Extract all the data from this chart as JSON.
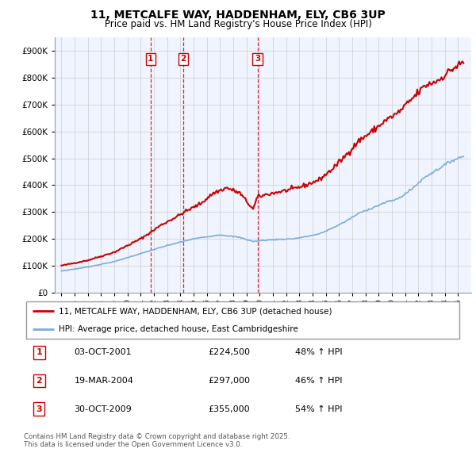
{
  "title": "11, METCALFE WAY, HADDENHAM, ELY, CB6 3UP",
  "subtitle": "Price paid vs. HM Land Registry's House Price Index (HPI)",
  "red_label": "11, METCALFE WAY, HADDENHAM, ELY, CB6 3UP (detached house)",
  "blue_label": "HPI: Average price, detached house, East Cambridgeshire",
  "footnote": "Contains HM Land Registry data © Crown copyright and database right 2025.\nThis data is licensed under the Open Government Licence v3.0.",
  "transactions": [
    {
      "num": 1,
      "date": "03-OCT-2001",
      "price": "£224,500",
      "change": "48% ↑ HPI",
      "year": 2001.75
    },
    {
      "num": 2,
      "date": "19-MAR-2004",
      "price": "£297,000",
      "change": "46% ↑ HPI",
      "year": 2004.21
    },
    {
      "num": 3,
      "date": "30-OCT-2009",
      "price": "£355,000",
      "change": "54% ↑ HPI",
      "year": 2009.83
    }
  ],
  "red_color": "#cc0000",
  "blue_color": "#7aaddc",
  "vline_color": "#cc0000",
  "background_color": "#f0f4ff",
  "ylim": [
    0,
    950000
  ],
  "xlim_start": 1994.5,
  "xlim_end": 2026.0,
  "red_anchors_x": [
    1995.0,
    1997.0,
    1999.0,
    2001.0,
    2001.75,
    2002.5,
    2004.0,
    2004.21,
    2005.5,
    2006.5,
    2007.5,
    2008.5,
    2009.0,
    2009.5,
    2009.83,
    2010.5,
    2011.5,
    2012.5,
    2013.5,
    2014.5,
    2015.5,
    2016.5,
    2017.5,
    2018.5,
    2019.5,
    2020.5,
    2021.5,
    2022.5,
    2023.5,
    2024.5,
    2025.5
  ],
  "red_anchors_y": [
    100000,
    120000,
    150000,
    200000,
    224500,
    250000,
    290000,
    297000,
    330000,
    370000,
    390000,
    370000,
    340000,
    310000,
    355000,
    365000,
    375000,
    385000,
    400000,
    420000,
    460000,
    510000,
    565000,
    600000,
    640000,
    670000,
    720000,
    770000,
    790000,
    830000,
    860000
  ],
  "blue_anchors_x": [
    1995.0,
    1997.0,
    1999.0,
    2001.0,
    2003.0,
    2005.0,
    2007.0,
    2008.5,
    2009.5,
    2010.5,
    2011.5,
    2012.5,
    2013.5,
    2014.5,
    2015.5,
    2016.5,
    2017.5,
    2018.5,
    2019.5,
    2020.5,
    2021.5,
    2022.5,
    2023.5,
    2024.5,
    2025.5
  ],
  "blue_anchors_y": [
    80000,
    95000,
    115000,
    145000,
    175000,
    200000,
    215000,
    205000,
    190000,
    195000,
    198000,
    200000,
    208000,
    218000,
    240000,
    265000,
    295000,
    315000,
    335000,
    350000,
    385000,
    430000,
    460000,
    490000,
    510000
  ]
}
